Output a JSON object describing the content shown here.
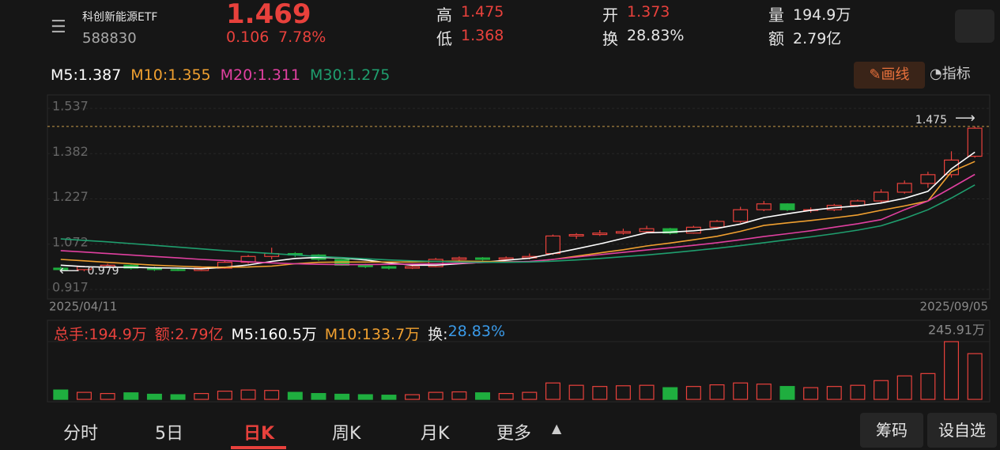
{
  "header": {
    "name": "科创新能源ETF",
    "code": "588830",
    "price": "1.469",
    "change": "0.106",
    "change_pct": "7.78%",
    "stats": [
      {
        "label": "高",
        "value": "1.475",
        "color": "#e8413c"
      },
      {
        "label": "低",
        "value": "1.368",
        "color": "#e8413c"
      },
      {
        "label": "开",
        "value": "1.373",
        "color": "#e8413c"
      },
      {
        "label": "换",
        "value": "28.83%",
        "color": "#e6e6e6"
      },
      {
        "label": "量",
        "value": "194.9万",
        "color": "#e6e6e6"
      },
      {
        "label": "额",
        "value": "2.79亿",
        "color": "#e6e6e6"
      }
    ]
  },
  "toolbar": {
    "draw": "画线",
    "indicator": "指标"
  },
  "chart_data": {
    "type": "candlestick",
    "ylim": [
      0.917,
      1.537
    ],
    "yticks": [
      1.537,
      1.382,
      1.227,
      1.072,
      0.917
    ],
    "grid": true,
    "up_color": "#e8413c",
    "down_color": "#1fae3f",
    "high_marker": 1.475,
    "low_marker": 0.979,
    "date_labels": [
      "2025/04/11",
      "2025/09/05"
    ],
    "candles": [
      [
        0.99,
        0.995,
        0.982,
        0.985
      ],
      [
        0.985,
        0.998,
        0.979,
        0.995
      ],
      [
        0.995,
        1.005,
        0.99,
        1.0
      ],
      [
        1.0,
        1.003,
        0.985,
        0.99
      ],
      [
        0.99,
        0.995,
        0.98,
        0.985
      ],
      [
        0.985,
        0.99,
        0.98,
        0.982
      ],
      [
        0.982,
        0.995,
        0.98,
        0.99
      ],
      [
        0.99,
        1.015,
        0.988,
        1.01
      ],
      [
        1.01,
        1.035,
        1.005,
        1.03
      ],
      [
        1.03,
        1.06,
        1.02,
        1.04
      ],
      [
        1.04,
        1.045,
        1.028,
        1.035
      ],
      [
        1.035,
        1.038,
        1.015,
        1.02
      ],
      [
        1.02,
        1.022,
        0.998,
        1.0
      ],
      [
        1.0,
        1.005,
        0.99,
        0.995
      ],
      [
        0.995,
        0.998,
        0.985,
        0.99
      ],
      [
        0.99,
        1.0,
        0.987,
        0.995
      ],
      [
        0.995,
        1.025,
        0.993,
        1.02
      ],
      [
        1.02,
        1.03,
        1.012,
        1.025
      ],
      [
        1.025,
        1.028,
        1.015,
        1.02
      ],
      [
        1.02,
        1.03,
        1.016,
        1.025
      ],
      [
        1.025,
        1.04,
        1.02,
        1.03
      ],
      [
        1.04,
        1.105,
        1.035,
        1.1
      ],
      [
        1.1,
        1.11,
        1.09,
        1.105
      ],
      [
        1.105,
        1.12,
        1.1,
        1.11
      ],
      [
        1.11,
        1.125,
        1.105,
        1.115
      ],
      [
        1.115,
        1.135,
        1.11,
        1.125
      ],
      [
        1.125,
        1.128,
        1.105,
        1.11
      ],
      [
        1.11,
        1.135,
        1.108,
        1.13
      ],
      [
        1.13,
        1.155,
        1.125,
        1.15
      ],
      [
        1.15,
        1.2,
        1.145,
        1.19
      ],
      [
        1.19,
        1.22,
        1.185,
        1.21
      ],
      [
        1.21,
        1.212,
        1.185,
        1.19
      ],
      [
        1.19,
        1.198,
        1.18,
        1.19
      ],
      [
        1.19,
        1.21,
        1.185,
        1.205
      ],
      [
        1.205,
        1.225,
        1.2,
        1.22
      ],
      [
        1.22,
        1.26,
        1.215,
        1.25
      ],
      [
        1.25,
        1.29,
        1.245,
        1.28
      ],
      [
        1.28,
        1.32,
        1.265,
        1.31
      ],
      [
        1.31,
        1.39,
        1.3,
        1.36
      ],
      [
        1.373,
        1.475,
        1.368,
        1.469
      ]
    ],
    "ma": [
      {
        "label": "M5:1.387",
        "color": "#ffffff",
        "values": [
          1.0,
          0.995,
          0.993,
          0.993,
          0.991,
          0.99,
          0.988,
          0.993,
          1.001,
          1.013,
          1.023,
          1.027,
          1.025,
          1.018,
          1.008,
          1.0,
          1.0,
          1.005,
          1.01,
          1.017,
          1.024,
          1.04,
          1.056,
          1.073,
          1.092,
          1.111,
          1.113,
          1.118,
          1.126,
          1.141,
          1.163,
          1.176,
          1.188,
          1.197,
          1.203,
          1.213,
          1.229,
          1.253,
          1.33,
          1.387
        ]
      },
      {
        "label": "M10:1.355",
        "color": "#f0a030",
        "values": [
          1.02,
          1.015,
          1.01,
          1.005,
          1.0,
          0.997,
          0.994,
          0.993,
          0.994,
          0.997,
          1.005,
          1.01,
          1.011,
          1.011,
          1.011,
          1.011,
          1.013,
          1.014,
          1.013,
          1.012,
          1.012,
          1.02,
          1.031,
          1.042,
          1.053,
          1.066,
          1.076,
          1.087,
          1.099,
          1.116,
          1.136,
          1.145,
          1.153,
          1.162,
          1.172,
          1.188,
          1.203,
          1.22,
          1.32,
          1.355
        ]
      },
      {
        "label": "M20:1.311",
        "color": "#e040a0",
        "values": [
          1.05,
          1.045,
          1.04,
          1.035,
          1.03,
          1.025,
          1.02,
          1.016,
          1.012,
          1.008,
          1.005,
          1.003,
          1.002,
          1.002,
          1.003,
          1.004,
          1.005,
          1.007,
          1.009,
          1.011,
          1.013,
          1.02,
          1.028,
          1.036,
          1.044,
          1.052,
          1.06,
          1.068,
          1.077,
          1.087,
          1.098,
          1.108,
          1.118,
          1.13,
          1.142,
          1.156,
          1.19,
          1.22,
          1.265,
          1.311
        ]
      },
      {
        "label": "M30:1.275",
        "color": "#1f9e6e",
        "values": [
          1.09,
          1.085,
          1.08,
          1.074,
          1.068,
          1.062,
          1.056,
          1.05,
          1.045,
          1.04,
          1.035,
          1.03,
          1.026,
          1.022,
          1.018,
          1.015,
          1.013,
          1.011,
          1.01,
          1.01,
          1.011,
          1.014,
          1.018,
          1.023,
          1.029,
          1.035,
          1.042,
          1.05,
          1.058,
          1.067,
          1.077,
          1.087,
          1.097,
          1.108,
          1.12,
          1.135,
          1.16,
          1.19,
          1.23,
          1.275
        ]
      }
    ],
    "volume": {
      "ylim": [
        0,
        245.91
      ],
      "yticks": [
        {
          "value": 245.91,
          "label": "245.91万"
        }
      ],
      "legend": [
        {
          "text": "总手:194.9万",
          "color": "#e8413c"
        },
        {
          "text": "额:2.79亿",
          "color": "#e8413c"
        },
        {
          "text": "M5:160.5万",
          "color": "#ffffff"
        },
        {
          "text": "M10:133.7万",
          "color": "#f0a030"
        },
        {
          "text": "换:",
          "color": "#e6e6e6"
        },
        {
          "text": "28.83%",
          "color": "#3a9ae8"
        }
      ],
      "values": [
        40,
        30,
        25,
        28,
        22,
        20,
        25,
        35,
        40,
        38,
        30,
        25,
        22,
        20,
        18,
        20,
        30,
        32,
        28,
        25,
        30,
        70,
        60,
        55,
        58,
        60,
        50,
        55,
        62,
        70,
        65,
        55,
        50,
        55,
        60,
        80,
        100,
        110,
        245.91,
        194.9
      ]
    }
  },
  "tabs": [
    "分时",
    "5日",
    "日K",
    "周K",
    "月K",
    "更多"
  ],
  "right_buttons": [
    "筹码",
    "设自选"
  ]
}
